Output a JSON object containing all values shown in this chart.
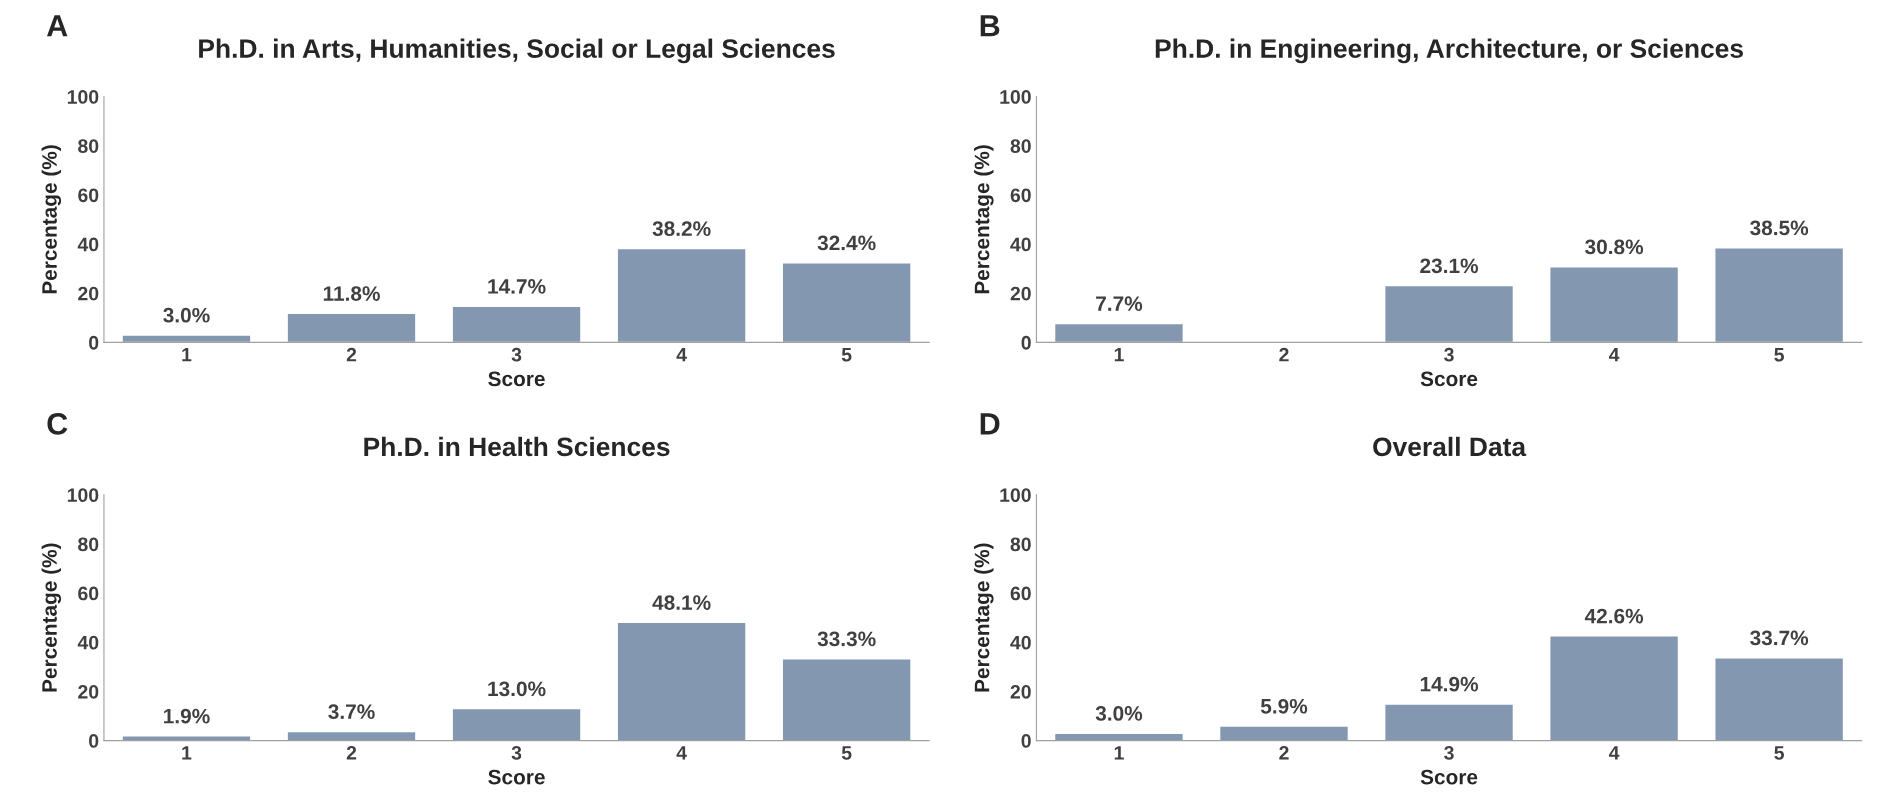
{
  "chart_data": [
    {
      "type": "bar",
      "title": "Ph.D. in Arts, Humanities, Social or Legal Sciences",
      "xlabel": "Score",
      "ylabel": "Percentage (%)",
      "annotations": [
        "A"
      ],
      "categories": [
        "1",
        "2",
        "3",
        "4",
        "5"
      ],
      "values": [
        3.0,
        11.8,
        14.7,
        38.2,
        32.4
      ],
      "value_labels": [
        "3.0%",
        "11.8%",
        "14.7%",
        "38.2%",
        "32.4%"
      ],
      "color": "#8497b0",
      "ylim": [
        0,
        100
      ],
      "yticks": [
        0,
        20,
        40,
        60,
        80,
        100
      ]
    },
    {
      "type": "bar",
      "title": "Ph.D. in Engineering, Architecture, or Sciences",
      "xlabel": "Score",
      "ylabel": "Percentage (%)",
      "annotations": [
        "B"
      ],
      "categories": [
        "1",
        "2",
        "3",
        "4",
        "5"
      ],
      "values": [
        7.7,
        null,
        23.1,
        30.8,
        38.5
      ],
      "value_labels": [
        "7.7%",
        null,
        "23.1%",
        "30.8%",
        "38.5%"
      ],
      "color": "#8497b0",
      "ylim": [
        0,
        100
      ],
      "yticks": [
        0,
        20,
        40,
        60,
        80,
        100
      ]
    },
    {
      "type": "bar",
      "title": "Ph.D. in Health Sciences",
      "xlabel": "Score",
      "ylabel": "Percentage (%)",
      "annotations": [
        "C"
      ],
      "categories": [
        "1",
        "2",
        "3",
        "4",
        "5"
      ],
      "values": [
        1.9,
        3.7,
        13.0,
        48.1,
        33.3
      ],
      "value_labels": [
        "1.9%",
        "3.7%",
        "13.0%",
        "48.1%",
        "33.3%"
      ],
      "color": "#8497b0",
      "ylim": [
        0,
        100
      ],
      "yticks": [
        0,
        20,
        40,
        60,
        80,
        100
      ]
    },
    {
      "type": "bar",
      "title": "Overall Data",
      "xlabel": "Score",
      "ylabel": "Percentage (%)",
      "annotations": [
        "D"
      ],
      "categories": [
        "1",
        "2",
        "3",
        "4",
        "5"
      ],
      "values": [
        3.0,
        5.9,
        14.9,
        42.6,
        33.7
      ],
      "value_labels": [
        "3.0%",
        "5.9%",
        "14.9%",
        "42.6%",
        "33.7%"
      ],
      "color": "#8497b0",
      "ylim": [
        0,
        100
      ],
      "yticks": [
        0,
        20,
        40,
        60,
        80,
        100
      ]
    }
  ]
}
